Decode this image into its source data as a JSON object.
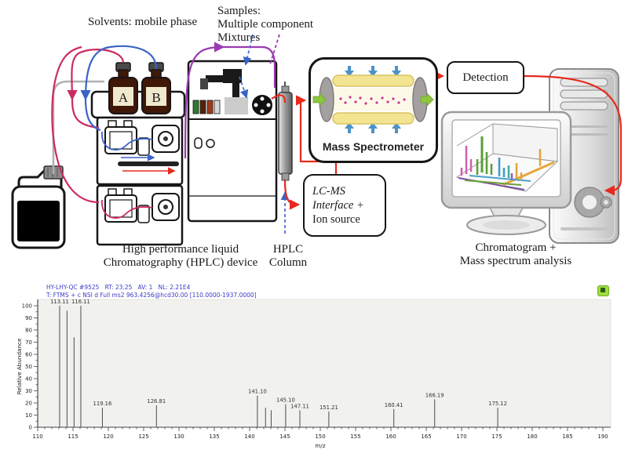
{
  "diagram": {
    "solvents_label": "Solvents: mobile phase",
    "samples_lines": [
      "Samples:",
      "Multiple component",
      "Mixtures"
    ],
    "bottle_a": "A",
    "bottle_b": "B",
    "mass_spectrometer_label": "Mass Spectrometer",
    "detection_label": "Detection",
    "lcms_lines": [
      "LC-MS",
      "Interface +",
      "Ion source"
    ],
    "hplc_device_lines": [
      "High performance liquid",
      "Chromatography (HPLC) device"
    ],
    "hplc_column_lines": [
      "HPLC",
      "Column"
    ],
    "analysis_lines": [
      "Chromatogram +",
      "Mass spectrum analysis"
    ],
    "colors": {
      "tube_blue": "#3a63c8",
      "tube_crimson": "#cc2a62",
      "tube_purple": "#9a3ab0",
      "tube_red": "#e8291c",
      "tube_gray": "#b0b0b0",
      "ms_yellow": "#f3e492",
      "ms_green_arrow": "#8dc63f",
      "ms_blue_arrow": "#4d93c8",
      "ion_magenta": "#cf3490"
    }
  },
  "spectrum": {
    "header_line1": "HY-LHY-QC #9525   RT: 23.25   AV: 1   NL: 2.21E4",
    "header_line2": "T: FTMS + c NSI d Full ms2 963.4256@hcd30.00 [110.0000-1937.0000]",
    "header_color": "#3b3bc8",
    "status_icon": "green-ready-indicator",
    "plot_bg": "#f1f1ee"
  },
  "chart_data": {
    "type": "bar",
    "subtype": "mass-spectrum",
    "title": "",
    "xlabel": "m/z",
    "ylabel": "Relative Abundance",
    "xlim": [
      110,
      190
    ],
    "ylim": [
      0,
      100
    ],
    "x_ticks": [
      110,
      115,
      120,
      125,
      130,
      135,
      140,
      145,
      150,
      155,
      160,
      165,
      170,
      175,
      180,
      185,
      190
    ],
    "x_minor_step": 1,
    "y_ticks": [
      0,
      10,
      20,
      30,
      40,
      50,
      60,
      70,
      80,
      90,
      100
    ],
    "y_minor_step": 5,
    "grid": false,
    "legend": "none",
    "peaks": [
      {
        "mz": 113.11,
        "intensity": 100,
        "label": "113.11"
      },
      {
        "mz": 114.15,
        "intensity": 96,
        "label": ""
      },
      {
        "mz": 115.15,
        "intensity": 74,
        "label": ""
      },
      {
        "mz": 116.11,
        "intensity": 100,
        "label": "116.11"
      },
      {
        "mz": 119.16,
        "intensity": 16,
        "label": "119.16"
      },
      {
        "mz": 126.81,
        "intensity": 18,
        "label": "126.81"
      },
      {
        "mz": 141.1,
        "intensity": 26,
        "label": "141.10"
      },
      {
        "mz": 142.25,
        "intensity": 16,
        "label": ""
      },
      {
        "mz": 143.05,
        "intensity": 14,
        "label": ""
      },
      {
        "mz": 145.1,
        "intensity": 19,
        "label": "145.10"
      },
      {
        "mz": 147.11,
        "intensity": 14,
        "label": "147.11"
      },
      {
        "mz": 151.21,
        "intensity": 13,
        "label": "151.21"
      },
      {
        "mz": 160.41,
        "intensity": 15,
        "label": "160.41"
      },
      {
        "mz": 166.19,
        "intensity": 23,
        "label": "166.19"
      },
      {
        "mz": 175.12,
        "intensity": 16,
        "label": "175.12"
      }
    ]
  }
}
